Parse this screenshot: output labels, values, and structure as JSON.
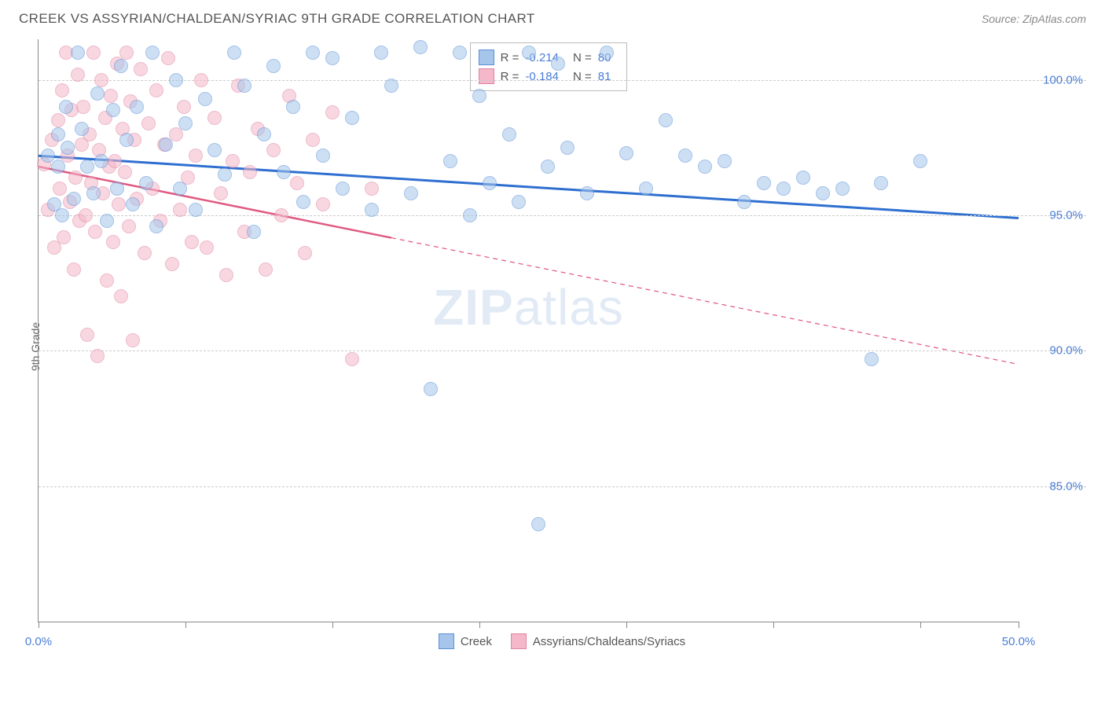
{
  "title": "CREEK VS ASSYRIAN/CHALDEAN/SYRIAC 9TH GRADE CORRELATION CHART",
  "source": "Source: ZipAtlas.com",
  "watermark": {
    "bold": "ZIP",
    "rest": "atlas"
  },
  "chart": {
    "type": "scatter",
    "y_axis_label": "9th Grade",
    "xlim": [
      0,
      50
    ],
    "ylim": [
      80,
      101.5
    ],
    "x_ticks": [
      0,
      7.5,
      15,
      22.5,
      30,
      37.5,
      45,
      50
    ],
    "x_tick_labels": {
      "0": "0.0%",
      "50": "50.0%"
    },
    "y_ticks": [
      85,
      90,
      95,
      100
    ],
    "y_tick_labels": {
      "85": "85.0%",
      "90": "90.0%",
      "95": "95.0%",
      "100": "100.0%"
    },
    "background_color": "#ffffff",
    "grid_color": "#cccccc",
    "series": [
      {
        "name": "Creek",
        "label": "Creek",
        "fill": "#a6c5eb",
        "stroke": "#5b8fd6",
        "line_color": "#2f6fd0",
        "line_width": 3,
        "R": "-0.214",
        "N": "80",
        "trend": {
          "x1": 0,
          "y1": 97.2,
          "x2": 50,
          "y2": 94.9,
          "solid_until_x": 50
        },
        "points": [
          [
            0.5,
            97.2
          ],
          [
            0.8,
            95.4
          ],
          [
            1.0,
            98.0
          ],
          [
            1.0,
            96.8
          ],
          [
            1.2,
            95.0
          ],
          [
            1.4,
            99.0
          ],
          [
            1.5,
            97.5
          ],
          [
            1.8,
            95.6
          ],
          [
            2.0,
            101.0
          ],
          [
            2.2,
            98.2
          ],
          [
            2.5,
            96.8
          ],
          [
            2.8,
            95.8
          ],
          [
            3.0,
            99.5
          ],
          [
            3.2,
            97.0
          ],
          [
            3.5,
            94.8
          ],
          [
            3.8,
            98.9
          ],
          [
            4.0,
            96.0
          ],
          [
            4.2,
            100.5
          ],
          [
            4.5,
            97.8
          ],
          [
            4.8,
            95.4
          ],
          [
            5.0,
            99.0
          ],
          [
            5.5,
            96.2
          ],
          [
            5.8,
            101.0
          ],
          [
            6.0,
            94.6
          ],
          [
            6.5,
            97.6
          ],
          [
            7.0,
            100.0
          ],
          [
            7.2,
            96.0
          ],
          [
            7.5,
            98.4
          ],
          [
            8.0,
            95.2
          ],
          [
            8.5,
            99.3
          ],
          [
            9.0,
            97.4
          ],
          [
            9.5,
            96.5
          ],
          [
            10.0,
            101.0
          ],
          [
            10.5,
            99.8
          ],
          [
            11.0,
            94.4
          ],
          [
            11.5,
            98.0
          ],
          [
            12.0,
            100.5
          ],
          [
            12.5,
            96.6
          ],
          [
            13.0,
            99.0
          ],
          [
            13.5,
            95.5
          ],
          [
            14.0,
            101.0
          ],
          [
            14.5,
            97.2
          ],
          [
            15.0,
            100.8
          ],
          [
            15.5,
            96.0
          ],
          [
            16.0,
            98.6
          ],
          [
            17.0,
            95.2
          ],
          [
            17.5,
            101.0
          ],
          [
            18.0,
            99.8
          ],
          [
            19.0,
            95.8
          ],
          [
            19.5,
            101.2
          ],
          [
            20.0,
            88.6
          ],
          [
            21.0,
            97.0
          ],
          [
            21.5,
            101.0
          ],
          [
            22.0,
            95.0
          ],
          [
            22.5,
            99.4
          ],
          [
            23.0,
            96.2
          ],
          [
            24.0,
            98.0
          ],
          [
            24.5,
            95.5
          ],
          [
            25.0,
            101.0
          ],
          [
            25.5,
            83.6
          ],
          [
            26.0,
            96.8
          ],
          [
            26.5,
            100.6
          ],
          [
            27.0,
            97.5
          ],
          [
            28.0,
            95.8
          ],
          [
            29.0,
            101.0
          ],
          [
            30.0,
            97.3
          ],
          [
            31.0,
            96.0
          ],
          [
            32.0,
            98.5
          ],
          [
            33.0,
            97.2
          ],
          [
            34.0,
            96.8
          ],
          [
            35.0,
            97.0
          ],
          [
            36.0,
            95.5
          ],
          [
            37.0,
            96.2
          ],
          [
            38.0,
            96.0
          ],
          [
            39.0,
            96.4
          ],
          [
            40.0,
            95.8
          ],
          [
            41.0,
            96.0
          ],
          [
            42.5,
            89.7
          ],
          [
            43.0,
            96.2
          ],
          [
            45.0,
            97.0
          ]
        ]
      },
      {
        "name": "Assyrians/Chaldeans/Syriacs",
        "label": "Assyrians/Chaldeans/Syriacs",
        "fill": "#f4b8ca",
        "stroke": "#e083a2",
        "line_color": "#e05a82",
        "line_width": 2.5,
        "R": "-0.184",
        "N": "81",
        "trend": {
          "x1": 0,
          "y1": 96.8,
          "x2": 50,
          "y2": 89.5,
          "solid_until_x": 18
        },
        "points": [
          [
            0.3,
            96.9
          ],
          [
            0.5,
            95.2
          ],
          [
            0.7,
            97.8
          ],
          [
            0.8,
            93.8
          ],
          [
            1.0,
            98.5
          ],
          [
            1.1,
            96.0
          ],
          [
            1.2,
            99.6
          ],
          [
            1.3,
            94.2
          ],
          [
            1.4,
            101.0
          ],
          [
            1.5,
            97.2
          ],
          [
            1.6,
            95.5
          ],
          [
            1.7,
            98.9
          ],
          [
            1.8,
            93.0
          ],
          [
            1.9,
            96.4
          ],
          [
            2.0,
            100.2
          ],
          [
            2.1,
            94.8
          ],
          [
            2.2,
            97.6
          ],
          [
            2.3,
            99.0
          ],
          [
            2.4,
            95.0
          ],
          [
            2.5,
            90.6
          ],
          [
            2.6,
            98.0
          ],
          [
            2.7,
            96.2
          ],
          [
            2.8,
            101.0
          ],
          [
            2.9,
            94.4
          ],
          [
            3.0,
            89.8
          ],
          [
            3.1,
            97.4
          ],
          [
            3.2,
            100.0
          ],
          [
            3.3,
            95.8
          ],
          [
            3.4,
            98.6
          ],
          [
            3.5,
            92.6
          ],
          [
            3.6,
            96.8
          ],
          [
            3.7,
            99.4
          ],
          [
            3.8,
            94.0
          ],
          [
            3.9,
            97.0
          ],
          [
            4.0,
            100.6
          ],
          [
            4.1,
            95.4
          ],
          [
            4.2,
            92.0
          ],
          [
            4.3,
            98.2
          ],
          [
            4.4,
            96.6
          ],
          [
            4.5,
            101.0
          ],
          [
            4.6,
            94.6
          ],
          [
            4.7,
            99.2
          ],
          [
            4.8,
            90.4
          ],
          [
            4.9,
            97.8
          ],
          [
            5.0,
            95.6
          ],
          [
            5.2,
            100.4
          ],
          [
            5.4,
            93.6
          ],
          [
            5.6,
            98.4
          ],
          [
            5.8,
            96.0
          ],
          [
            6.0,
            99.6
          ],
          [
            6.2,
            94.8
          ],
          [
            6.4,
            97.6
          ],
          [
            6.6,
            100.8
          ],
          [
            6.8,
            93.2
          ],
          [
            7.0,
            98.0
          ],
          [
            7.2,
            95.2
          ],
          [
            7.4,
            99.0
          ],
          [
            7.6,
            96.4
          ],
          [
            7.8,
            94.0
          ],
          [
            8.0,
            97.2
          ],
          [
            8.3,
            100.0
          ],
          [
            8.6,
            93.8
          ],
          [
            9.0,
            98.6
          ],
          [
            9.3,
            95.8
          ],
          [
            9.6,
            92.8
          ],
          [
            9.9,
            97.0
          ],
          [
            10.2,
            99.8
          ],
          [
            10.5,
            94.4
          ],
          [
            10.8,
            96.6
          ],
          [
            11.2,
            98.2
          ],
          [
            11.6,
            93.0
          ],
          [
            12.0,
            97.4
          ],
          [
            12.4,
            95.0
          ],
          [
            12.8,
            99.4
          ],
          [
            13.2,
            96.2
          ],
          [
            13.6,
            93.6
          ],
          [
            14.0,
            97.8
          ],
          [
            14.5,
            95.4
          ],
          [
            15.0,
            98.8
          ],
          [
            16.0,
            89.7
          ],
          [
            17.0,
            96.0
          ]
        ]
      }
    ]
  },
  "legend_stats": {
    "r_prefix": "R = ",
    "n_prefix": "N = "
  }
}
